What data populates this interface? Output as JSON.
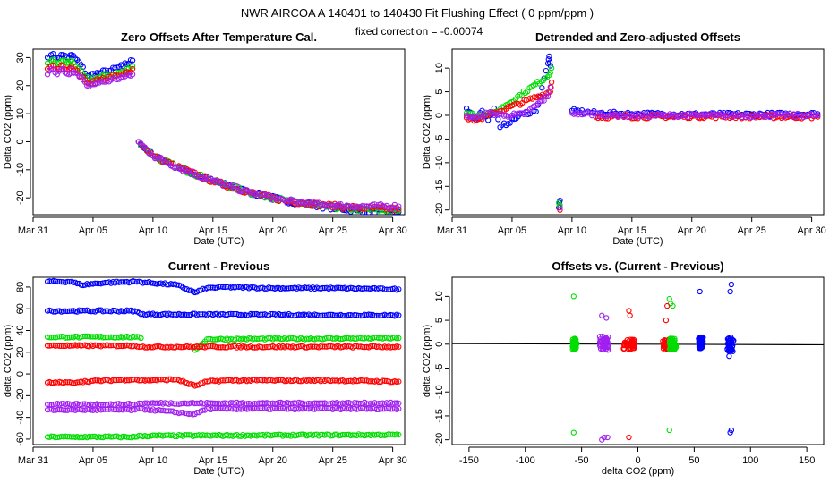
{
  "suptitle": "NWR   AIRCOA A   140401 to 140430   Fit Flushing Effect ( 0 ppm/ppm )",
  "annotation": "fixed correction = -0.00074",
  "colors": {
    "blue": "#0000ff",
    "green": "#00dd00",
    "red": "#ff0000",
    "purple": "#a020f0"
  },
  "chart_data": [
    {
      "type": "scatter",
      "title": "Zero Offsets After Temperature Cal.",
      "xlabel": "Date (UTC)",
      "ylabel": "Delta CO2 (ppm)",
      "xlim": [
        0,
        31
      ],
      "ylim": [
        -26,
        33
      ],
      "x_tick_values": [
        0,
        5,
        10,
        15,
        20,
        25,
        30
      ],
      "x_tick_labels": [
        "Mar 31",
        "Apr 05",
        "Apr 10",
        "Apr 15",
        "Apr 20",
        "Apr 25",
        "Apr 30"
      ],
      "y_ticks": [
        -20,
        -10,
        0,
        10,
        20,
        30
      ],
      "series": [
        {
          "name": "blue",
          "color": "#0000ff",
          "x": [
            1.2,
            1.5,
            2.0,
            2.5,
            3.0,
            3.2,
            4.0,
            4.5,
            5.5,
            6.5,
            7.5,
            8.3,
            8.8,
            10,
            12,
            15,
            18,
            21,
            24,
            27,
            30.5
          ],
          "y": [
            30,
            31,
            30,
            31,
            30,
            31,
            27.5,
            23.5,
            24.5,
            25.5,
            27,
            29,
            0,
            -5,
            -9,
            -14,
            -18,
            -21,
            -23,
            -24.5,
            -25
          ]
        },
        {
          "name": "green",
          "color": "#00dd00",
          "x": [
            1.2,
            1.5,
            2.0,
            2.5,
            3.0,
            3.2,
            4.5,
            5.5,
            6.5,
            7.5,
            8.3,
            8.8,
            10,
            12,
            15,
            18,
            21,
            24,
            27,
            30.5
          ],
          "y": [
            28,
            29,
            28,
            29,
            28,
            29,
            22,
            23,
            24,
            25,
            27,
            0,
            -5,
            -9,
            -14,
            -18,
            -21,
            -23,
            -24,
            -24.5
          ]
        },
        {
          "name": "red",
          "color": "#ff0000",
          "x": [
            1.2,
            1.5,
            2.0,
            2.5,
            3.0,
            3.2,
            4.5,
            5.5,
            6.5,
            7.5,
            8.3,
            8.8,
            10,
            12,
            15,
            18,
            21,
            24,
            27,
            30.5
          ],
          "y": [
            26,
            27,
            26,
            27,
            26,
            27,
            21,
            22,
            23,
            24,
            26,
            0,
            -5,
            -9,
            -14,
            -18,
            -21,
            -22.5,
            -23.5,
            -24
          ]
        },
        {
          "name": "purple",
          "color": "#a020f0",
          "x": [
            1.2,
            1.5,
            2.0,
            2.5,
            3.0,
            3.2,
            4.5,
            5.5,
            6.5,
            7.5,
            8.3,
            8.8,
            10,
            12,
            15,
            18,
            21,
            24,
            27,
            30.5
          ],
          "y": [
            24,
            26,
            24,
            26,
            24,
            26,
            20,
            21,
            22,
            23,
            24,
            0,
            -5,
            -9,
            -14,
            -18,
            -21,
            -22.5,
            -23,
            -23
          ]
        }
      ]
    },
    {
      "type": "scatter",
      "title": "Detrended and Zero-adjusted Offsets",
      "xlabel": "Date (UTC)",
      "ylabel": "Delta CO2 (ppm)",
      "xlim": [
        0,
        31
      ],
      "ylim": [
        -21,
        14
      ],
      "x_tick_values": [
        0,
        5,
        10,
        15,
        20,
        25,
        30
      ],
      "x_tick_labels": [
        "Mar 31",
        "Apr 05",
        "Apr 10",
        "Apr 15",
        "Apr 20",
        "Apr 25",
        "Apr 30"
      ],
      "y_ticks": [
        -20,
        -15,
        -10,
        -5,
        0,
        5,
        10
      ],
      "series": [
        {
          "name": "blue",
          "color": "#0000ff",
          "x": [
            1.2,
            2.0,
            2.5,
            3.0,
            3.5,
            4.0,
            6.0,
            7.0,
            8.0,
            8.1,
            8.2,
            8.9,
            9.0,
            10,
            12,
            15,
            20,
            25,
            30.5
          ],
          "y": [
            1.5,
            -1,
            1,
            -1,
            1.5,
            -2.5,
            0.5,
            0.8,
            11,
            12.5,
            10.5,
            -19.5,
            -18,
            1,
            0.5,
            0.3,
            0.2,
            0.2,
            0.3
          ]
        },
        {
          "name": "green",
          "color": "#00dd00",
          "x": [
            1.2,
            2.5,
            3.5,
            8.1,
            8.3,
            8.9,
            9.0
          ],
          "y": [
            0.5,
            0,
            0.5,
            8.5,
            10,
            -18.5,
            -19
          ]
        },
        {
          "name": "red",
          "color": "#ff0000",
          "x": [
            1.2,
            2.0,
            3.0,
            8.2,
            8.3,
            9.0,
            12,
            20,
            30.5
          ],
          "y": [
            -0.5,
            -1,
            0,
            5,
            7,
            -20,
            -0.3,
            -0.2,
            -0.3
          ]
        },
        {
          "name": "purple",
          "color": "#a020f0",
          "x": [
            1.2,
            2.0,
            3.0,
            4.5,
            6,
            8.0,
            8.2,
            9.0,
            10,
            14,
            18,
            22,
            26,
            30.5
          ],
          "y": [
            0,
            -0.5,
            0.5,
            0,
            0.2,
            4,
            6,
            -19.5,
            0.5,
            0,
            0,
            0,
            0,
            0
          ]
        }
      ]
    },
    {
      "type": "scatter",
      "title": "Current - Previous",
      "xlabel": "Date (UTC)",
      "ylabel": "delta CO2 (ppm)",
      "xlim": [
        0,
        31
      ],
      "ylim": [
        -65,
        89
      ],
      "x_tick_values": [
        0,
        5,
        10,
        15,
        20,
        25,
        30
      ],
      "x_tick_labels": [
        "Mar 31",
        "Apr 05",
        "Apr 10",
        "Apr 15",
        "Apr 20",
        "Apr 25",
        "Apr 30"
      ],
      "y_ticks": [
        -60,
        -40,
        -20,
        0,
        20,
        40,
        60,
        80
      ],
      "series": [
        {
          "name": "blue",
          "color": "#0000ff",
          "x": [
            1.2,
            3.2,
            4.0,
            6.0,
            8.5,
            12,
            13.5,
            14.5,
            16,
            20,
            25,
            30.5
          ],
          "y": [
            85,
            85,
            82,
            84,
            85,
            82,
            75,
            79,
            80,
            79,
            79,
            78
          ]
        },
        {
          "name": "blue-2",
          "color": "#0000ff",
          "x": [
            1.2,
            3.2,
            4.0,
            8.5,
            9.0,
            30.5
          ],
          "y": [
            58,
            58,
            58,
            58,
            55,
            54
          ]
        },
        {
          "name": "green",
          "color": "#00dd00",
          "x": [
            1.2,
            3.2,
            4.0,
            8.5,
            9.0,
            13.5,
            14.5,
            30.5
          ],
          "y": [
            34,
            34,
            34,
            34,
            33,
            22,
            32,
            33
          ]
        },
        {
          "name": "green-2",
          "color": "#00dd00",
          "x": [
            1.2,
            3.2,
            4.0,
            8.5,
            9.0,
            30.5
          ],
          "y": [
            -58,
            -58,
            -58,
            -58,
            -57,
            -56
          ]
        },
        {
          "name": "red",
          "color": "#ff0000",
          "x": [
            1.2,
            3.2,
            4.0,
            8.5,
            9.0,
            12,
            13.5,
            14.5,
            16,
            20,
            25,
            30.5
          ],
          "y": [
            -8,
            -8,
            -7,
            -5,
            -6,
            -5,
            -11,
            -7,
            -6,
            -6,
            -6,
            -7
          ]
        },
        {
          "name": "red-2",
          "color": "#ff0000",
          "x": [
            1.2,
            3.2,
            4.0,
            8.5,
            9.0,
            30.5
          ],
          "y": [
            26,
            26,
            26,
            26,
            25,
            25
          ]
        },
        {
          "name": "purple",
          "color": "#a020f0",
          "x": [
            1.2,
            3.2,
            4.0,
            8.5,
            9.0,
            30.5
          ],
          "y": [
            -28,
            -28,
            -28,
            -28,
            -27,
            -27
          ]
        },
        {
          "name": "purple-2",
          "color": "#a020f0",
          "x": [
            1.2,
            3.2,
            4.0,
            8.5,
            9.0,
            13.5,
            14.5,
            30.5
          ],
          "y": [
            -33,
            -33,
            -33,
            -33,
            -32,
            -37,
            -32,
            -32
          ]
        }
      ]
    },
    {
      "type": "scatter",
      "title": "Offsets vs. (Current - Previous)",
      "xlabel": "delta CO2 (ppm)",
      "ylabel": "delta CO2 (ppm)",
      "xlim": [
        -165,
        165
      ],
      "ylim": [
        -21,
        14
      ],
      "x_ticks": [
        -150,
        -100,
        -50,
        0,
        50,
        100,
        150
      ],
      "y_ticks": [
        -20,
        -15,
        -10,
        -5,
        0,
        5,
        10
      ],
      "regression_line": {
        "x": [
          -165,
          165
        ],
        "y": [
          0.12,
          -0.12
        ]
      },
      "clusters": [
        {
          "color": "#00dd00",
          "x": -56,
          "y": 0,
          "spread_x": 2,
          "spread_y": 1.2
        },
        {
          "color": "#a020f0",
          "x": -30,
          "y": 0.3,
          "spread_x": 4,
          "spread_y": 1.5
        },
        {
          "color": "#ff0000",
          "x": -8,
          "y": 0,
          "spread_x": 5,
          "spread_y": 1.0
        },
        {
          "color": "#ff0000",
          "x": 25,
          "y": 0,
          "spread_x": 3,
          "spread_y": 1.0
        },
        {
          "color": "#00dd00",
          "x": 31,
          "y": 0,
          "spread_x": 3,
          "spread_y": 1.2
        },
        {
          "color": "#0000ff",
          "x": 56,
          "y": 0.3,
          "spread_x": 2,
          "spread_y": 1.2
        },
        {
          "color": "#0000ff",
          "x": 82,
          "y": 0,
          "spread_x": 3,
          "spread_y": 1.5
        }
      ],
      "outliers": [
        {
          "color": "#00dd00",
          "x": [
            -57,
            -57,
            28,
            28,
            29,
            31
          ],
          "y": [
            10,
            -18.5,
            -18,
            9.5,
            8.5,
            8
          ]
        },
        {
          "color": "#a020f0",
          "x": [
            -32,
            -28,
            -32,
            -30,
            -27
          ],
          "y": [
            6,
            5.5,
            -20,
            -19.5,
            -19.5
          ]
        },
        {
          "color": "#ff0000",
          "x": [
            -8,
            -7,
            -8,
            25,
            26
          ],
          "y": [
            7,
            6,
            -19.5,
            5,
            8
          ]
        },
        {
          "color": "#0000ff",
          "x": [
            55,
            82,
            83,
            82,
            83,
            81
          ],
          "y": [
            11,
            11,
            12.5,
            -18.5,
            -18,
            -2.5
          ]
        }
      ]
    }
  ]
}
